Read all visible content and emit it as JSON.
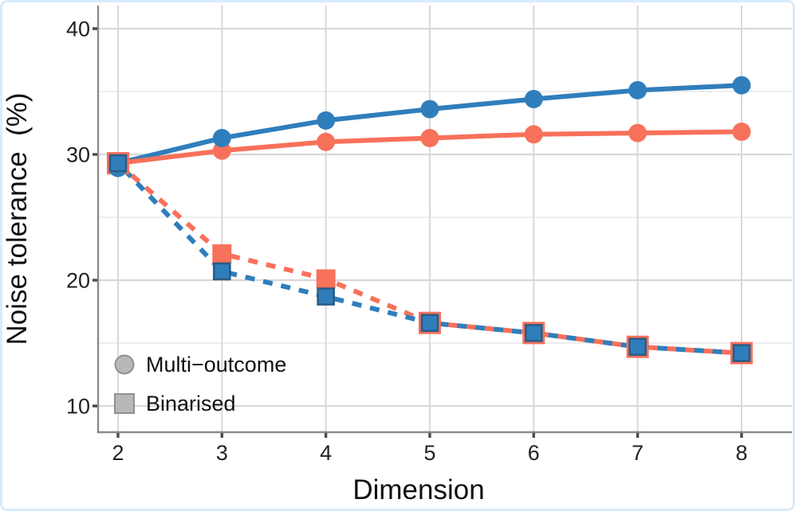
{
  "frame": {
    "border_color": "#d9ecfb",
    "background": "#ffffff"
  },
  "colors": {
    "blue": "#2f7ebc",
    "blue_edge": "#2a5d85",
    "coral": "#f8715a",
    "legend_gray_fill": "#b8b8b8",
    "legend_gray_edge": "#909090",
    "axis_line": "#8a8a8a",
    "tick_mark": "#4a4a4a",
    "grid_major": "#d8d8d8",
    "grid_minor": "#ececec",
    "text": "#222222"
  },
  "chart_data": {
    "type": "line",
    "title": "",
    "xlabel": "Dimension",
    "ylabel": "Noise tolerance  (%)",
    "x": [
      2,
      3,
      4,
      5,
      6,
      7,
      8
    ],
    "xticks": [
      2,
      3,
      4,
      5,
      6,
      7,
      8
    ],
    "yticks": [
      10,
      20,
      30,
      40
    ],
    "yticks_minor": [
      15,
      25,
      35
    ],
    "xlim": [
      1.8,
      8.5
    ],
    "ylim": [
      8,
      42
    ],
    "grid": "horizontal major+minor, vertical major only",
    "legend": {
      "position": "inside bottom-left",
      "items": [
        {
          "marker": "circle",
          "label": "Multi−outcome"
        },
        {
          "marker": "square",
          "label": "Binarised"
        }
      ]
    },
    "series": [
      {
        "name": "multi-outcome-blue",
        "marker": "circle",
        "linestyle": "solid",
        "color": "#2f7ebc",
        "values": [
          29.3,
          31.3,
          32.7,
          33.6,
          34.4,
          35.1,
          35.5
        ]
      },
      {
        "name": "multi-outcome-coral",
        "marker": "circle",
        "linestyle": "solid",
        "color": "#f8715a",
        "values": [
          29.3,
          30.3,
          31.0,
          31.3,
          31.6,
          31.7,
          31.8
        ]
      },
      {
        "name": "binarised-blue",
        "marker": "square",
        "linestyle": "dashed",
        "color": "#2f7ebc",
        "marker_edge": "#2a5d85",
        "values": [
          29.3,
          20.7,
          18.7,
          16.6,
          15.8,
          14.7,
          14.2
        ]
      },
      {
        "name": "binarised-coral",
        "marker": "square",
        "linestyle": "dashed",
        "color": "#f8715a",
        "values": [
          29.3,
          22.1,
          20.1,
          16.6,
          15.8,
          14.7,
          14.2
        ]
      }
    ]
  }
}
